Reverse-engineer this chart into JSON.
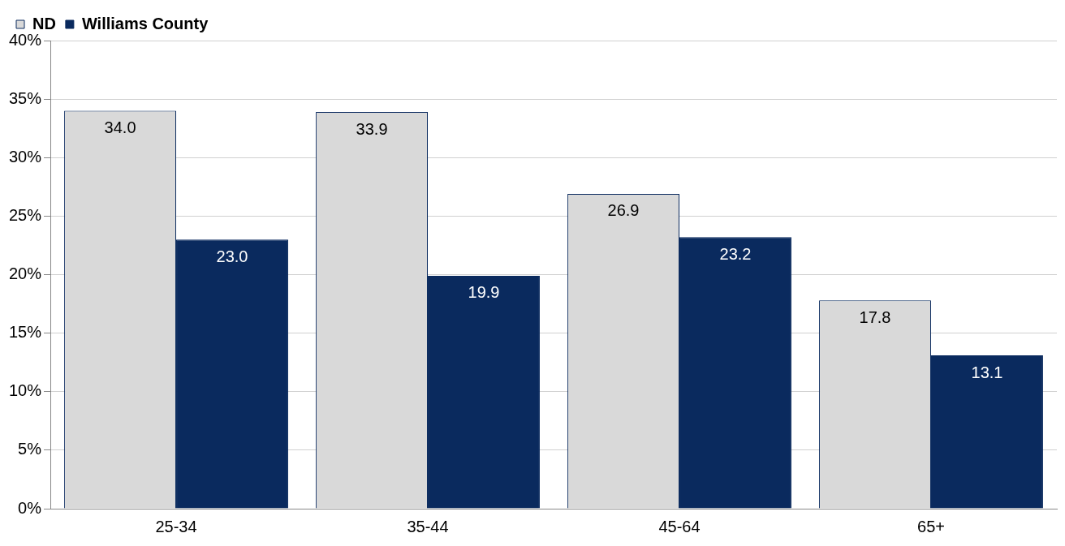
{
  "chart_data": {
    "type": "bar",
    "categories": [
      "25-34",
      "35-44",
      "45-64",
      "65+"
    ],
    "series": [
      {
        "name": "ND",
        "color": "#d9d9d9",
        "values": [
          34.0,
          33.9,
          26.9,
          17.8
        ],
        "value_labels": [
          "34.0",
          "33.9",
          "26.9",
          "17.8"
        ]
      },
      {
        "name": "Williams County",
        "color": "#0a2a5e",
        "values": [
          23.0,
          19.9,
          23.2,
          13.1
        ],
        "value_labels": [
          "23.0",
          "19.9",
          "23.2",
          "13.1"
        ]
      }
    ],
    "ylim": [
      0,
      40
    ],
    "yticks": [
      {
        "value": 0,
        "label": "0%"
      },
      {
        "value": 5,
        "label": "5%"
      },
      {
        "value": 10,
        "label": "10%"
      },
      {
        "value": 15,
        "label": "15%"
      },
      {
        "value": 20,
        "label": "20%"
      },
      {
        "value": 25,
        "label": "25%"
      },
      {
        "value": 30,
        "label": "30%"
      },
      {
        "value": 35,
        "label": "35%"
      },
      {
        "value": 40,
        "label": "40%"
      }
    ],
    "grid": "y",
    "legend": "top left"
  }
}
